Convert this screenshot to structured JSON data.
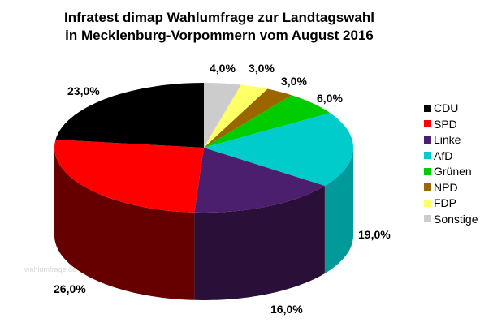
{
  "chart_data": {
    "type": "pie",
    "title_line1": "Infratest dimap Wahlumfrage zur Landtagswahl",
    "title_line2": "in Mecklenburg-Vorpommern vom August 2016",
    "categories": [
      "CDU",
      "SPD",
      "Linke",
      "AfD",
      "Grünen",
      "NPD",
      "FDP",
      "Sonstige"
    ],
    "values": [
      23,
      26,
      16,
      19,
      6,
      3,
      3,
      4
    ],
    "labels": [
      "23,0%",
      "26,0%",
      "16,0%",
      "19,0%",
      "6,0%",
      "3,0%",
      "3,0%",
      "4,0%"
    ],
    "colors": [
      "#000000",
      "#ff0000",
      "#4b1e6e",
      "#00cccc",
      "#00cc00",
      "#996600",
      "#ffff66",
      "#cccccc"
    ],
    "side_colors": [
      "#000000",
      "#660000",
      "#2a1038",
      "#009a9a",
      "#009900",
      "#664400",
      "#bbbb44",
      "#999999"
    ],
    "legend_position": "right"
  },
  "watermark": "wahlumfrage.de"
}
